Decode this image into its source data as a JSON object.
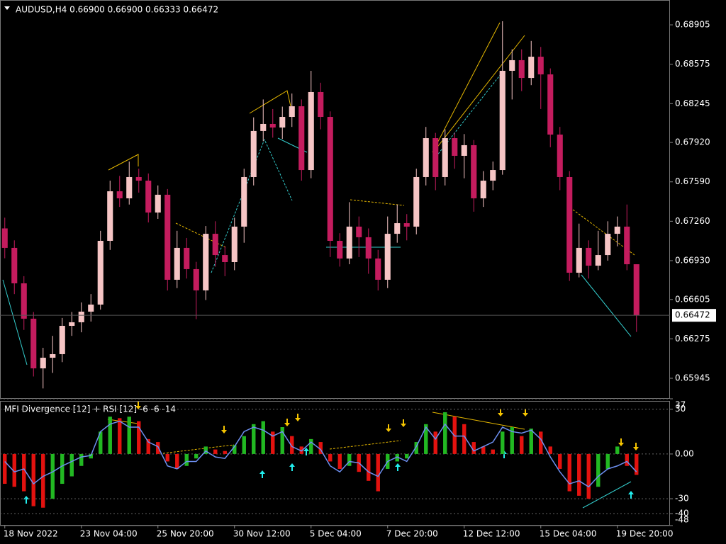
{
  "chart_data": [
    {
      "type": "candlestick",
      "title": "AUDUSD,H4  0.66900 0.66900 0.66333 0.66472",
      "open": [
        0.672,
        0.67037,
        0.6674,
        0.66444,
        0.66028,
        0.66117,
        0.66147,
        0.66384,
        0.66414,
        0.66503,
        0.66562,
        0.67096,
        0.67511,
        0.67452,
        0.6763,
        0.676,
        0.67333,
        0.67482,
        0.6677,
        0.67037,
        0.66859,
        0.66681,
        0.67155,
        0.66977,
        0.66918,
        0.67215,
        0.6763,
        0.68016,
        0.68075,
        0.68045,
        0.68134,
        0.68223,
        0.67689,
        0.68342,
        0.68134,
        0.67096,
        0.66948,
        0.67215,
        0.67126,
        0.66948,
        0.6677,
        0.67155,
        0.67244,
        0.67215,
        0.6763,
        0.67956,
        0.6763,
        0.67956,
        0.67808,
        0.67897,
        0.67452,
        0.676,
        0.67689,
        0.6852,
        0.68609,
        0.6846,
        0.68638,
        0.6849,
        0.67986,
        0.6763,
        0.66829,
        0.67037,
        0.66888,
        0.66977,
        0.67155,
        0.67215,
        0.669
      ],
      "high": [
        0.6729,
        0.671,
        0.668,
        0.665,
        0.662,
        0.663,
        0.6645,
        0.665,
        0.6658,
        0.6665,
        0.6718,
        0.676,
        0.6764,
        0.6776,
        0.677,
        0.6766,
        0.6756,
        0.6753,
        0.6718,
        0.6712,
        0.6692,
        0.6722,
        0.6726,
        0.6705,
        0.6729,
        0.677,
        0.6813,
        0.6828,
        0.682,
        0.6822,
        0.6833,
        0.6828,
        0.6852,
        0.6842,
        0.6818,
        0.6716,
        0.6742,
        0.673,
        0.672,
        0.6702,
        0.673,
        0.674,
        0.6732,
        0.677,
        0.6805,
        0.68,
        0.6803,
        0.68,
        0.6799,
        0.6794,
        0.6768,
        0.6776,
        0.68935,
        0.687,
        0.687,
        0.6877,
        0.6872,
        0.6854,
        0.6805,
        0.6768,
        0.6724,
        0.671,
        0.6718,
        0.6726,
        0.673,
        0.674,
        0.669
      ],
      "low": [
        0.6695,
        0.6665,
        0.6635,
        0.6596,
        0.6586,
        0.6599,
        0.6608,
        0.663,
        0.6633,
        0.6642,
        0.6652,
        0.6702,
        0.6738,
        0.674,
        0.675,
        0.6725,
        0.6728,
        0.6668,
        0.667,
        0.6678,
        0.6644,
        0.666,
        0.6688,
        0.668,
        0.6685,
        0.6708,
        0.6756,
        0.6793,
        0.6796,
        0.6795,
        0.6805,
        0.676,
        0.6762,
        0.6803,
        0.6696,
        0.6688,
        0.669,
        0.6696,
        0.6682,
        0.6668,
        0.667,
        0.6708,
        0.671,
        0.6715,
        0.6756,
        0.6752,
        0.6756,
        0.677,
        0.6762,
        0.6734,
        0.6738,
        0.6752,
        0.6765,
        0.6828,
        0.6835,
        0.684,
        0.682,
        0.6788,
        0.6752,
        0.6676,
        0.6679,
        0.6678,
        0.6685,
        0.6693,
        0.6705,
        0.6685,
        0.66333
      ],
      "close": [
        0.67037,
        0.6674,
        0.66444,
        0.66028,
        0.66117,
        0.66147,
        0.66384,
        0.66414,
        0.66503,
        0.66562,
        0.67096,
        0.67511,
        0.67452,
        0.6763,
        0.676,
        0.67333,
        0.67482,
        0.6677,
        0.67037,
        0.66859,
        0.66681,
        0.67155,
        0.66977,
        0.66918,
        0.67215,
        0.6763,
        0.68016,
        0.68075,
        0.68045,
        0.68134,
        0.68223,
        0.67689,
        0.68342,
        0.68134,
        0.67096,
        0.66948,
        0.67215,
        0.67126,
        0.66948,
        0.6677,
        0.67155,
        0.67244,
        0.67215,
        0.6763,
        0.67956,
        0.6763,
        0.67956,
        0.67808,
        0.67897,
        0.67452,
        0.676,
        0.67689,
        0.6852,
        0.68609,
        0.6846,
        0.68638,
        0.6849,
        0.67986,
        0.6763,
        0.66829,
        0.67037,
        0.66888,
        0.66977,
        0.67155,
        0.67215,
        0.669,
        0.66472
      ],
      "up_color": "#f6c5c5",
      "down_color": "#c41c5e",
      "xlim": [
        -0.5,
        69.5
      ],
      "ylim": [
        0.65779,
        0.69113
      ],
      "yticks": [
        0.68905,
        0.68575,
        0.68245,
        {
          "value": 0.6792,
          "label": "0.67920"
        },
        {
          "value": 0.6759,
          "label": "0.67590"
        },
        {
          "value": 0.6726,
          "label": "0.67260"
        },
        {
          "value": 0.6693,
          "label": "0.66930"
        },
        0.66605,
        0.66275,
        0.65945
      ],
      "last_price": 0.66472
    },
    {
      "type": "oscillator",
      "title": "MFI Divergence [12] + RSI [12] -6 -6 -14",
      "bar_values": [
        -20,
        -22,
        -25,
        -35,
        -36,
        -30,
        -20,
        -15,
        -8,
        -3,
        15,
        25,
        24,
        25,
        22,
        10,
        8,
        -5,
        -10,
        -8,
        -3,
        5,
        3,
        2,
        6,
        12,
        20,
        22,
        15,
        18,
        12,
        5,
        10,
        8,
        -5,
        -10,
        -8,
        -12,
        -18,
        -25,
        -10,
        -5,
        -3,
        8,
        20,
        15,
        28,
        25,
        20,
        8,
        5,
        3,
        15,
        18,
        12,
        17,
        15,
        5,
        -10,
        -25,
        -28,
        -30,
        -22,
        -10,
        5,
        -8,
        -14
      ],
      "line_values": [
        -5,
        -12,
        -10,
        -20,
        -15,
        -12,
        -8,
        -5,
        -2,
        -1,
        15,
        20,
        22,
        18,
        18,
        8,
        5,
        -8,
        -10,
        -5,
        -5,
        2,
        -2,
        -3,
        5,
        15,
        18,
        16,
        12,
        15,
        5,
        2,
        8,
        3,
        -8,
        -12,
        -5,
        -6,
        -12,
        -15,
        -5,
        -2,
        -5,
        5,
        18,
        10,
        20,
        12,
        12,
        2,
        5,
        8,
        18,
        15,
        14,
        16,
        10,
        -2,
        -12,
        -20,
        -18,
        -22,
        -15,
        -10,
        -8,
        -5,
        -12
      ],
      "up_color": "#22b822",
      "down_color": "#e3120f",
      "line_color": "#6d8ff0",
      "xlim": [
        -0.5,
        69.5
      ],
      "ylim": [
        -48,
        37
      ],
      "yticks": [
        37,
        30,
        {
          "value": 0,
          "label": "0.00"
        },
        -30,
        -40,
        -48
      ],
      "grid": true,
      "xticks": [
        {
          "value": 0,
          "label": "18 Nov 2022"
        },
        {
          "value": 8,
          "label": "23 Nov 04:00"
        },
        {
          "value": 16,
          "label": "25 Nov 20:00"
        },
        {
          "value": 24,
          "label": "30 Nov 12:00"
        },
        {
          "value": 32,
          "label": "5 Dec 04:00"
        },
        {
          "value": 40,
          "label": "7 Dec 20:00"
        },
        {
          "value": 48,
          "label": "12 Dec 12:00"
        },
        {
          "value": 56,
          "label": "15 Dec 04:00"
        },
        {
          "value": 64,
          "label": "19 Dec 20:00"
        }
      ]
    }
  ]
}
